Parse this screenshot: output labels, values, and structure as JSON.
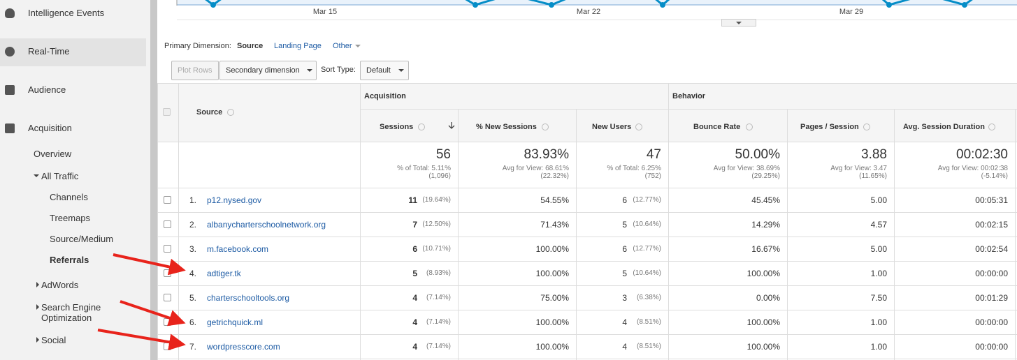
{
  "sidebar": {
    "items": [
      "Intelligence Events",
      "Real-Time",
      "Audience",
      "Acquisition",
      "Overview",
      "All Traffic",
      "Channels",
      "Treemaps",
      "Source/Medium",
      "Referrals",
      "AdWords",
      "Search Engine Optimization",
      "Social"
    ]
  },
  "chart": {
    "x_labels": [
      "Mar 15",
      "Mar 22",
      "Mar 29"
    ]
  },
  "toolbar": {
    "primary_dimension_label": "Primary Dimension:",
    "options": [
      "Source",
      "Landing Page",
      "Other"
    ],
    "plot_rows": "Plot Rows",
    "secondary_dimension": "Secondary dimension",
    "sort_type_label": "Sort Type:",
    "sort_type": "Default"
  },
  "table": {
    "groups": [
      "Acquisition",
      "Behavior"
    ],
    "source_header": "Source",
    "columns": [
      "Sessions",
      "% New Sessions",
      "New Users",
      "Bounce Rate",
      "Pages / Session",
      "Avg. Session Duration"
    ],
    "totals": [
      {
        "value": "56",
        "note": "% of Total: 5.11%",
        "base": "(1,096)"
      },
      {
        "value": "83.93%",
        "note": "Avg for View: 68.61%",
        "base": "(22.32%)"
      },
      {
        "value": "47",
        "note": "% of Total: 6.25%",
        "base": "(752)"
      },
      {
        "value": "50.00%",
        "note": "Avg for View: 38.69%",
        "base": "(29.25%)"
      },
      {
        "value": "3.88",
        "note": "Avg for View: 3.47",
        "base": "(11.65%)"
      },
      {
        "value": "00:02:30",
        "note": "Avg for View: 00:02:38",
        "base": "(-5.14%)"
      }
    ],
    "rows": [
      {
        "index": "1.",
        "source": "p12.nysed.gov",
        "sessions": "11",
        "sessions_pct": "(19.64%)",
        "new_sessions": "54.55%",
        "new_users": "6",
        "new_users_pct": "(12.77%)",
        "bounce_rate": "45.45%",
        "pages_per_session": "5.00",
        "avg_duration": "00:05:31"
      },
      {
        "index": "2.",
        "source": "albanycharterschoolnetwork.org",
        "sessions": "7",
        "sessions_pct": "(12.50%)",
        "new_sessions": "71.43%",
        "new_users": "5",
        "new_users_pct": "(10.64%)",
        "bounce_rate": "14.29%",
        "pages_per_session": "4.57",
        "avg_duration": "00:02:15"
      },
      {
        "index": "3.",
        "source": "m.facebook.com",
        "sessions": "6",
        "sessions_pct": "(10.71%)",
        "new_sessions": "100.00%",
        "new_users": "6",
        "new_users_pct": "(12.77%)",
        "bounce_rate": "16.67%",
        "pages_per_session": "5.00",
        "avg_duration": "00:02:54"
      },
      {
        "index": "4.",
        "source": "adtiger.tk",
        "sessions": "5",
        "sessions_pct": "(8.93%)",
        "new_sessions": "100.00%",
        "new_users": "5",
        "new_users_pct": "(10.64%)",
        "bounce_rate": "100.00%",
        "pages_per_session": "1.00",
        "avg_duration": "00:00:00"
      },
      {
        "index": "5.",
        "source": "charterschooltools.org",
        "sessions": "4",
        "sessions_pct": "(7.14%)",
        "new_sessions": "75.00%",
        "new_users": "3",
        "new_users_pct": "(6.38%)",
        "bounce_rate": "0.00%",
        "pages_per_session": "7.50",
        "avg_duration": "00:01:29"
      },
      {
        "index": "6.",
        "source": "getrichquick.ml",
        "sessions": "4",
        "sessions_pct": "(7.14%)",
        "new_sessions": "100.00%",
        "new_users": "4",
        "new_users_pct": "(8.51%)",
        "bounce_rate": "100.00%",
        "pages_per_session": "1.00",
        "avg_duration": "00:00:00"
      },
      {
        "index": "7.",
        "source": "wordpresscore.com",
        "sessions": "4",
        "sessions_pct": "(7.14%)",
        "new_sessions": "100.00%",
        "new_users": "4",
        "new_users_pct": "(8.51%)",
        "bounce_rate": "100.00%",
        "pages_per_session": "1.00",
        "avg_duration": "00:00:00"
      }
    ]
  }
}
